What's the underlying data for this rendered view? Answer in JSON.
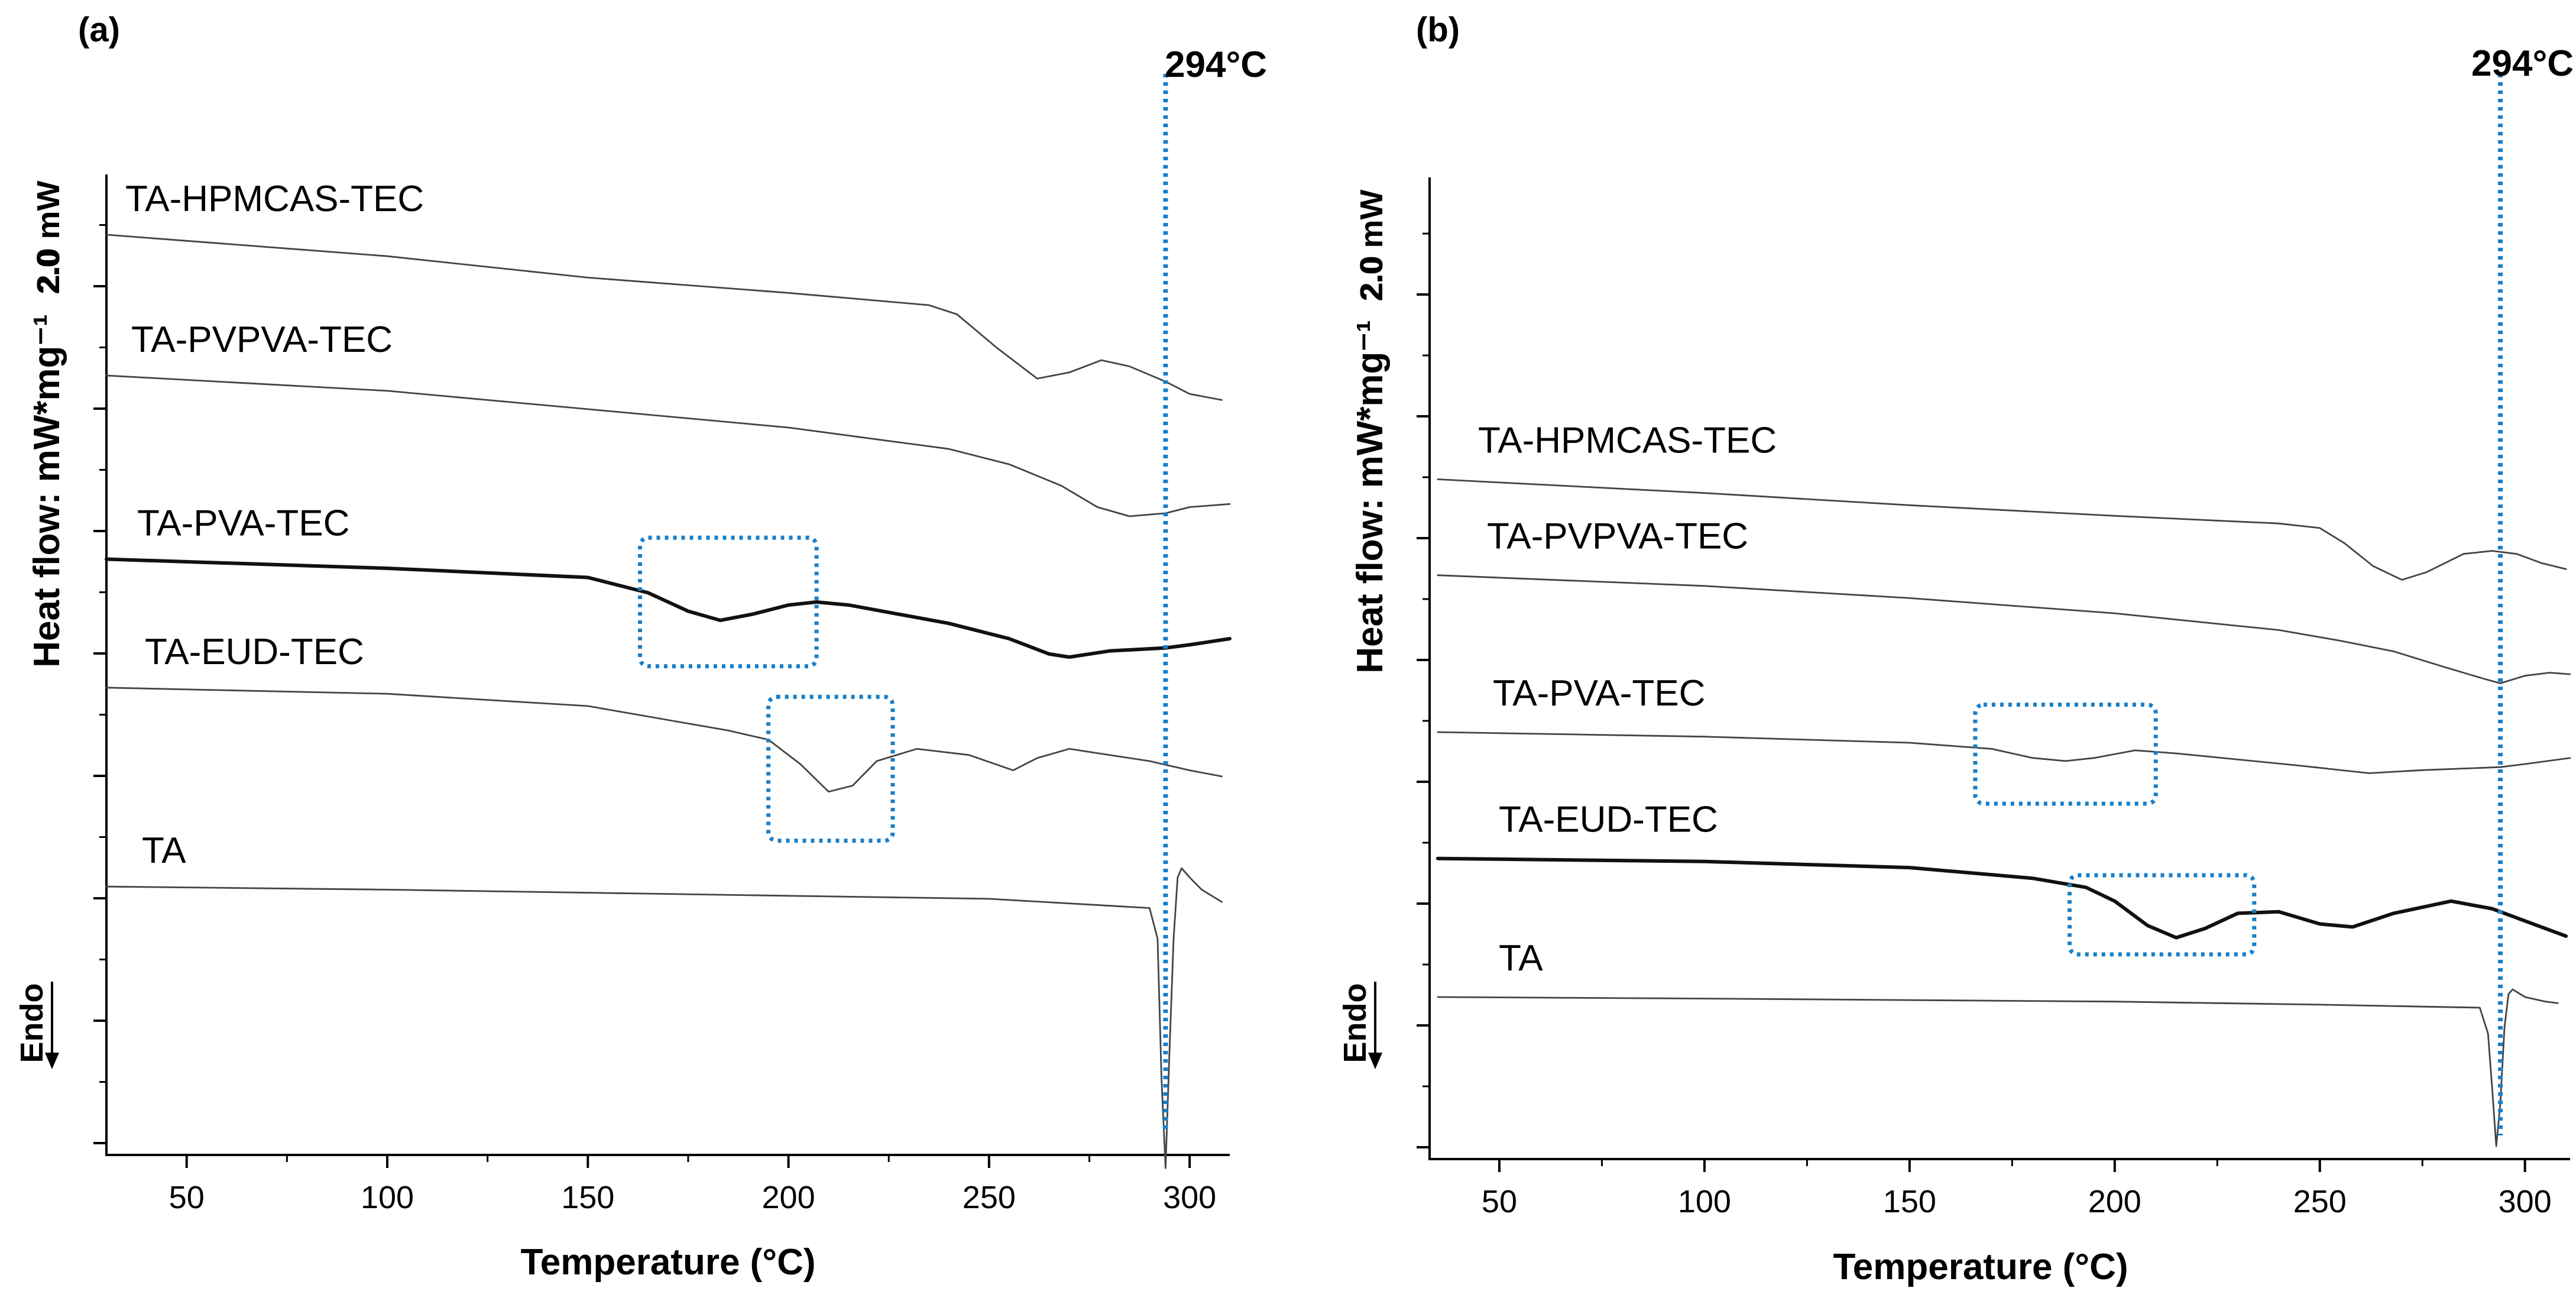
{
  "chart_data": [
    {
      "type": "line",
      "panel_label": "(a)",
      "xlabel": "Temperature (°C)",
      "ylabel": "Heat flow: mW*mg⁻¹",
      "xlim": [
        30,
        310
      ],
      "xticks": [
        50,
        100,
        150,
        200,
        250,
        300
      ],
      "scale_bar_label": "2.0 mW",
      "scale_bar_value": "2.0",
      "endo_label": "Endo",
      "marker": {
        "value": 294,
        "label": "294°C"
      },
      "series": [
        {
          "name": "TA-HPMCAS-TEC",
          "weight": "thin",
          "points": [
            [
              30,
              12.3
            ],
            [
              100,
              11.95
            ],
            [
              150,
              11.6
            ],
            [
              200,
              11.35
            ],
            [
              235,
              11.15
            ],
            [
              242,
              11.0
            ],
            [
              252,
              10.45
            ],
            [
              262,
              9.95
            ],
            [
              270,
              10.05
            ],
            [
              278,
              10.25
            ],
            [
              285,
              10.15
            ],
            [
              294,
              9.9
            ],
            [
              300,
              9.7
            ],
            [
              308,
              9.6
            ]
          ]
        },
        {
          "name": "TA-PVPVA-TEC",
          "weight": "thin",
          "points": [
            [
              30,
              10.0
            ],
            [
              100,
              9.75
            ],
            [
              150,
              9.45
            ],
            [
              200,
              9.15
            ],
            [
              240,
              8.8
            ],
            [
              255,
              8.55
            ],
            [
              268,
              8.2
            ],
            [
              277,
              7.85
            ],
            [
              285,
              7.7
            ],
            [
              294,
              7.75
            ],
            [
              300,
              7.85
            ],
            [
              310,
              7.9
            ]
          ]
        },
        {
          "name": "TA-PVA-TEC",
          "weight": "thick",
          "points": [
            [
              30,
              7.0
            ],
            [
              100,
              6.85
            ],
            [
              150,
              6.7
            ],
            [
              165,
              6.45
            ],
            [
              175,
              6.15
            ],
            [
              183,
              6.0
            ],
            [
              191,
              6.1
            ],
            [
              200,
              6.25
            ],
            [
              207,
              6.3
            ],
            [
              215,
              6.25
            ],
            [
              240,
              5.95
            ],
            [
              255,
              5.7
            ],
            [
              265,
              5.45
            ],
            [
              270,
              5.4
            ],
            [
              280,
              5.5
            ],
            [
              294,
              5.55
            ],
            [
              300,
              5.6
            ],
            [
              310,
              5.7
            ]
          ]
        },
        {
          "name": "TA-EUD-TEC",
          "weight": "thin",
          "points": [
            [
              30,
              4.9
            ],
            [
              100,
              4.8
            ],
            [
              150,
              4.6
            ],
            [
              185,
              4.2
            ],
            [
              195,
              4.05
            ],
            [
              203,
              3.65
            ],
            [
              210,
              3.2
            ],
            [
              216,
              3.3
            ],
            [
              222,
              3.7
            ],
            [
              232,
              3.9
            ],
            [
              245,
              3.8
            ],
            [
              256,
              3.55
            ],
            [
              262,
              3.75
            ],
            [
              270,
              3.9
            ],
            [
              290,
              3.7
            ],
            [
              300,
              3.55
            ],
            [
              308,
              3.45
            ]
          ]
        },
        {
          "name": "TA",
          "weight": "thin",
          "points": [
            [
              30,
              1.65
            ],
            [
              100,
              1.6
            ],
            [
              200,
              1.5
            ],
            [
              250,
              1.45
            ],
            [
              290,
              1.3
            ],
            [
              292,
              0.8
            ],
            [
              293,
              -1.5
            ],
            [
              294,
              -2.95
            ],
            [
              295,
              -1.0
            ],
            [
              296,
              0.8
            ],
            [
              297,
              1.8
            ],
            [
              298,
              1.95
            ],
            [
              300,
              1.8
            ],
            [
              303,
              1.6
            ],
            [
              308,
              1.4
            ]
          ]
        }
      ],
      "highlight_boxes": [
        {
          "x": [
            163,
            207
          ],
          "y": [
            5.25,
            7.35
          ]
        },
        {
          "x": [
            195,
            226
          ],
          "y": [
            2.4,
            4.75
          ]
        }
      ]
    },
    {
      "type": "line",
      "panel_label": "(b)",
      "xlabel": "Temperature (°C)",
      "ylabel": "Heat flow: mW*mg⁻¹",
      "xlim": [
        33,
        311
      ],
      "xticks": [
        50,
        100,
        150,
        200,
        250,
        300
      ],
      "scale_bar_label": "2.0 mW",
      "scale_bar_value": "2.0",
      "endo_label": "Endo",
      "marker": {
        "value": 294,
        "label": "294°C"
      },
      "series": [
        {
          "name": "TA-HPMCAS-TEC",
          "weight": "thin",
          "points": [
            [
              35,
              13.0
            ],
            [
              100,
              12.55
            ],
            [
              150,
              12.15
            ],
            [
              200,
              11.8
            ],
            [
              240,
              11.55
            ],
            [
              250,
              11.4
            ],
            [
              256,
              10.9
            ],
            [
              263,
              10.15
            ],
            [
              270,
              9.7
            ],
            [
              276,
              9.95
            ],
            [
              285,
              10.55
            ],
            [
              292,
              10.65
            ],
            [
              298,
              10.55
            ],
            [
              304,
              10.25
            ],
            [
              310,
              10.05
            ]
          ]
        },
        {
          "name": "TA-PVPVA-TEC",
          "weight": "thin",
          "points": [
            [
              35,
              9.85
            ],
            [
              100,
              9.5
            ],
            [
              150,
              9.1
            ],
            [
              200,
              8.6
            ],
            [
              240,
              8.05
            ],
            [
              255,
              7.7
            ],
            [
              268,
              7.35
            ],
            [
              280,
              6.85
            ],
            [
              290,
              6.45
            ],
            [
              294,
              6.3
            ],
            [
              300,
              6.55
            ],
            [
              306,
              6.65
            ],
            [
              311,
              6.6
            ]
          ]
        },
        {
          "name": "TA-PVA-TEC",
          "weight": "thin",
          "points": [
            [
              35,
              4.7
            ],
            [
              100,
              4.55
            ],
            [
              150,
              4.35
            ],
            [
              170,
              4.15
            ],
            [
              180,
              3.85
            ],
            [
              188,
              3.75
            ],
            [
              195,
              3.85
            ],
            [
              205,
              4.1
            ],
            [
              215,
              4.0
            ],
            [
              245,
              3.6
            ],
            [
              262,
              3.35
            ],
            [
              275,
              3.45
            ],
            [
              294,
              3.55
            ],
            [
              300,
              3.65
            ],
            [
              311,
              3.85
            ]
          ]
        },
        {
          "name": "TA-EUD-TEC",
          "weight": "thick",
          "points": [
            [
              35,
              0.55
            ],
            [
              100,
              0.45
            ],
            [
              150,
              0.25
            ],
            [
              180,
              -0.1
            ],
            [
              193,
              -0.4
            ],
            [
              200,
              -0.85
            ],
            [
              208,
              -1.65
            ],
            [
              215,
              -2.05
            ],
            [
              222,
              -1.75
            ],
            [
              230,
              -1.25
            ],
            [
              240,
              -1.2
            ],
            [
              250,
              -1.6
            ],
            [
              258,
              -1.7
            ],
            [
              268,
              -1.25
            ],
            [
              282,
              -0.85
            ],
            [
              292,
              -1.1
            ],
            [
              300,
              -1.5
            ],
            [
              310,
              -2.0
            ]
          ]
        },
        {
          "name": "TA",
          "weight": "thin",
          "points": [
            [
              35,
              -4.0
            ],
            [
              100,
              -4.05
            ],
            [
              200,
              -4.15
            ],
            [
              250,
              -4.25
            ],
            [
              289,
              -4.35
            ],
            [
              291,
              -5.2
            ],
            [
              292,
              -7.0
            ],
            [
              293,
              -8.9
            ],
            [
              294,
              -7.5
            ],
            [
              295,
              -5.0
            ],
            [
              296,
              -3.9
            ],
            [
              297,
              -3.75
            ],
            [
              300,
              -4.0
            ],
            [
              305,
              -4.15
            ],
            [
              308,
              -4.2
            ]
          ]
        }
      ],
      "highlight_boxes": [
        {
          "x": [
            166,
            210
          ],
          "y": [
            2.35,
            5.6
          ]
        },
        {
          "x": [
            189,
            234
          ],
          "y": [
            -2.6,
            0.0
          ]
        }
      ]
    }
  ]
}
